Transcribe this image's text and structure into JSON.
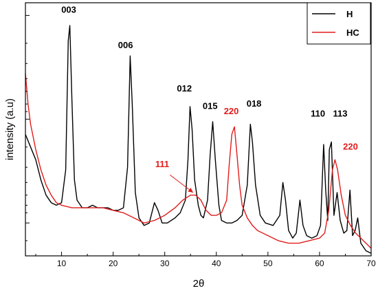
{
  "chart_data": {
    "type": "line",
    "title": "",
    "xlabel": "2θ",
    "ylabel": "intensity (a.u)",
    "xlim": [
      3,
      70
    ],
    "ylim": [
      0,
      100
    ],
    "xticks": [
      10,
      20,
      30,
      40,
      50,
      60,
      70
    ],
    "x_tick_labels": [
      "10",
      "20",
      "30",
      "40",
      "50",
      "60",
      "70"
    ],
    "y_tick_labels_shown": false,
    "grid": false,
    "legend": {
      "placement": "top-right",
      "entries": [
        "H",
        "HC"
      ]
    },
    "series": [
      {
        "name": "H",
        "color": "#000000",
        "points": [
          [
            3,
            48
          ],
          [
            4,
            43
          ],
          [
            5,
            38
          ],
          [
            6,
            30
          ],
          [
            7,
            24
          ],
          [
            8,
            21
          ],
          [
            9,
            20
          ],
          [
            10,
            21
          ],
          [
            10.8,
            34
          ],
          [
            11.3,
            85
          ],
          [
            11.6,
            91
          ],
          [
            12,
            62
          ],
          [
            12.5,
            30
          ],
          [
            13,
            22
          ],
          [
            14,
            19
          ],
          [
            15,
            19
          ],
          [
            16,
            20
          ],
          [
            17,
            19
          ],
          [
            18,
            19
          ],
          [
            19,
            19
          ],
          [
            20,
            18
          ],
          [
            21,
            18
          ],
          [
            22,
            19
          ],
          [
            22.8,
            35
          ],
          [
            23.3,
            79
          ],
          [
            23.7,
            60
          ],
          [
            24.3,
            25
          ],
          [
            25,
            15
          ],
          [
            26,
            12
          ],
          [
            27,
            13
          ],
          [
            28,
            21
          ],
          [
            28.7,
            18
          ],
          [
            29.5,
            13
          ],
          [
            30.5,
            13
          ],
          [
            32,
            15
          ],
          [
            33,
            17
          ],
          [
            34,
            22
          ],
          [
            34.5,
            38
          ],
          [
            34.9,
            59
          ],
          [
            35.3,
            50
          ],
          [
            35.8,
            30
          ],
          [
            36.5,
            20
          ],
          [
            37,
            16
          ],
          [
            37.5,
            15
          ],
          [
            38.3,
            22
          ],
          [
            38.8,
            40
          ],
          [
            39.3,
            53
          ],
          [
            39.8,
            38
          ],
          [
            40.5,
            20
          ],
          [
            41,
            14
          ],
          [
            42,
            13
          ],
          [
            43,
            13
          ],
          [
            44,
            14
          ],
          [
            45,
            16
          ],
          [
            46,
            28
          ],
          [
            46.6,
            52
          ],
          [
            47,
            45
          ],
          [
            47.6,
            28
          ],
          [
            48.5,
            16
          ],
          [
            49.5,
            13
          ],
          [
            51,
            12
          ],
          [
            52.3,
            16
          ],
          [
            52.9,
            29
          ],
          [
            53.4,
            22
          ],
          [
            54,
            10
          ],
          [
            54.8,
            7
          ],
          [
            55.5,
            9
          ],
          [
            56.2,
            22
          ],
          [
            56.8,
            12
          ],
          [
            57.5,
            8
          ],
          [
            58.5,
            7
          ],
          [
            59.5,
            8
          ],
          [
            60.2,
            12
          ],
          [
            60.8,
            44
          ],
          [
            61.2,
            26
          ],
          [
            61.6,
            14
          ],
          [
            61.9,
            42
          ],
          [
            62.3,
            45
          ],
          [
            62.8,
            16
          ],
          [
            63.4,
            25
          ],
          [
            64,
            14
          ],
          [
            64.7,
            9
          ],
          [
            65.3,
            10
          ],
          [
            65.9,
            26
          ],
          [
            66.4,
            8
          ],
          [
            66.9,
            10
          ],
          [
            67.4,
            15
          ],
          [
            68,
            5
          ],
          [
            69,
            2
          ],
          [
            70,
            1
          ]
        ]
      },
      {
        "name": "HC",
        "color": "#e11b1b",
        "points": [
          [
            3,
            72
          ],
          [
            3.5,
            60
          ],
          [
            4,
            52
          ],
          [
            5,
            42
          ],
          [
            6,
            34
          ],
          [
            7,
            28
          ],
          [
            8,
            24
          ],
          [
            9,
            21
          ],
          [
            10,
            20
          ],
          [
            12,
            19
          ],
          [
            14,
            19
          ],
          [
            16,
            19
          ],
          [
            18,
            19
          ],
          [
            20,
            18
          ],
          [
            22,
            17
          ],
          [
            24,
            15
          ],
          [
            25,
            14
          ],
          [
            26,
            13
          ],
          [
            28,
            14
          ],
          [
            30,
            16
          ],
          [
            32,
            19
          ],
          [
            33.5,
            22
          ],
          [
            35,
            24
          ],
          [
            36,
            24
          ],
          [
            37,
            22
          ],
          [
            38,
            18
          ],
          [
            39,
            16
          ],
          [
            40,
            16
          ],
          [
            41,
            17
          ],
          [
            42,
            22
          ],
          [
            42.5,
            36
          ],
          [
            43,
            48
          ],
          [
            43.5,
            51
          ],
          [
            44,
            40
          ],
          [
            44.5,
            28
          ],
          [
            45,
            20
          ],
          [
            46,
            15
          ],
          [
            47,
            12
          ],
          [
            48,
            10
          ],
          [
            50,
            8
          ],
          [
            52,
            6
          ],
          [
            54,
            5
          ],
          [
            56,
            5
          ],
          [
            58,
            6
          ],
          [
            60,
            7
          ],
          [
            61,
            9
          ],
          [
            61.8,
            18
          ],
          [
            62.5,
            34
          ],
          [
            63,
            38
          ],
          [
            63.5,
            34
          ],
          [
            64.2,
            24
          ],
          [
            65,
            16
          ],
          [
            66,
            12
          ],
          [
            67,
            9
          ],
          [
            68,
            7
          ],
          [
            69,
            5
          ],
          [
            70,
            3
          ]
        ]
      }
    ],
    "annotations": [
      {
        "text": "003",
        "x": 11.4,
        "y": 96,
        "color": "#000000"
      },
      {
        "text": "006",
        "x": 22.4,
        "y": 82,
        "color": "#000000"
      },
      {
        "text": "012",
        "x": 33.8,
        "y": 65,
        "color": "#000000"
      },
      {
        "text": "015",
        "x": 38.8,
        "y": 58,
        "color": "#000000"
      },
      {
        "text": "220",
        "x": 42.9,
        "y": 56,
        "color": "#e11b1b"
      },
      {
        "text": "018",
        "x": 47.3,
        "y": 59,
        "color": "#000000"
      },
      {
        "text": "110",
        "x": 59.7,
        "y": 55,
        "color": "#000000"
      },
      {
        "text": "113",
        "x": 64.0,
        "y": 55,
        "color": "#000000"
      },
      {
        "text": "220",
        "x": 66.0,
        "y": 42,
        "color": "#e11b1b"
      },
      {
        "text": "111",
        "x": 29.5,
        "y": 35,
        "color": "#e11b1b"
      }
    ],
    "arrow": {
      "from": [
        31.0,
        32
      ],
      "to": [
        35.5,
        25
      ],
      "color": "#e11b1b"
    }
  }
}
